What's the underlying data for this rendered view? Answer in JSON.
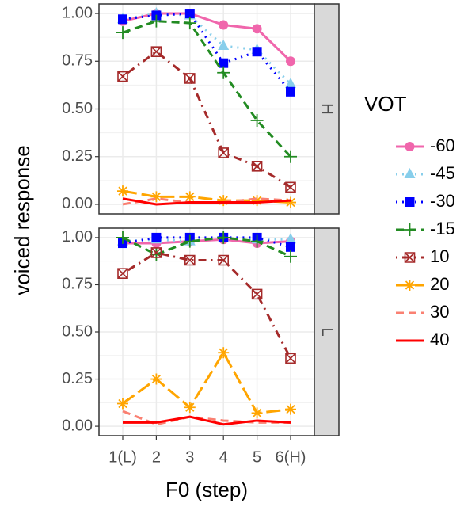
{
  "chart_data": [
    {
      "type": "line",
      "title": "H",
      "y_label": "voiced response",
      "legend_title": "VOT",
      "ylim": [
        -0.05,
        1.05
      ],
      "yticks": [
        {
          "value": 0,
          "label": "0.00"
        },
        {
          "value": 0.25,
          "label": "0.25"
        },
        {
          "value": 0.5,
          "label": "0.50"
        },
        {
          "value": 0.75,
          "label": "0.75"
        },
        {
          "value": 1,
          "label": "1.00"
        }
      ],
      "grid": true,
      "series": [
        {
          "name": "-60",
          "color": "#f066ac",
          "marker": "circle",
          "dash": "solid",
          "values": [
            0.96,
            1.0,
            1.0,
            0.94,
            0.92,
            0.75
          ]
        },
        {
          "name": "-45",
          "color": "#87ceeb",
          "marker": "triangle",
          "dash": "dotted",
          "values": [
            0.97,
            1.0,
            0.99,
            0.83,
            0.81,
            0.63
          ]
        },
        {
          "name": "-30",
          "color": "#0000ff",
          "marker": "square",
          "dash": "dotted",
          "values": [
            0.97,
            0.99,
            1.0,
            0.74,
            0.8,
            0.59
          ]
        },
        {
          "name": "-15",
          "color": "#228b22",
          "marker": "plus",
          "dash": "dashed",
          "values": [
            0.9,
            0.96,
            0.95,
            0.69,
            0.44,
            0.25
          ]
        },
        {
          "name": "10",
          "color": "#a52a2a",
          "marker": "boxx",
          "dash": "dotdash",
          "values": [
            0.67,
            0.8,
            0.66,
            0.27,
            0.2,
            0.09
          ]
        },
        {
          "name": "20",
          "color": "#ffa500",
          "marker": "asterisk",
          "dash": "longdash",
          "values": [
            0.07,
            0.04,
            0.04,
            0.02,
            0.02,
            0.01
          ]
        },
        {
          "name": "30",
          "color": "#fa8072",
          "marker": "none",
          "dash": "dashed",
          "values": [
            0.0,
            0.03,
            0.01,
            0.01,
            0.03,
            0.02
          ]
        },
        {
          "name": "40",
          "color": "#ff0000",
          "marker": "none",
          "dash": "solid",
          "values": [
            0.03,
            0.0,
            0.01,
            0.01,
            0.01,
            0.02
          ]
        }
      ]
    },
    {
      "type": "line",
      "title": "L",
      "x_label": "F0 (step)",
      "categories": [
        "1(L)",
        "2",
        "3",
        "4",
        "5",
        "6(H)"
      ],
      "ylim": [
        -0.05,
        1.05
      ],
      "yticks": [
        {
          "value": 0,
          "label": "0.00"
        },
        {
          "value": 0.25,
          "label": "0.25"
        },
        {
          "value": 0.5,
          "label": "0.50"
        },
        {
          "value": 0.75,
          "label": "0.75"
        },
        {
          "value": 1,
          "label": "1.00"
        }
      ],
      "grid": true,
      "series": [
        {
          "color": "#f066ac",
          "marker": "circle",
          "dash": "solid",
          "values": [
            0.97,
            0.97,
            0.98,
            0.99,
            0.97,
            0.98
          ]
        },
        {
          "color": "#87ceeb",
          "marker": "triangle",
          "dash": "dotted",
          "values": [
            0.98,
            0.99,
            0.98,
            1.0,
            0.99,
            0.99
          ]
        },
        {
          "color": "#0000ff",
          "marker": "square",
          "dash": "dotted",
          "values": [
            0.97,
            1.0,
            1.0,
            1.0,
            1.0,
            0.95
          ]
        },
        {
          "color": "#228b22",
          "marker": "plus",
          "dash": "dashed",
          "values": [
            1.0,
            0.91,
            0.98,
            1.0,
            0.98,
            0.9
          ]
        },
        {
          "color": "#a52a2a",
          "marker": "boxx",
          "dash": "dotdash",
          "values": [
            0.81,
            0.92,
            0.88,
            0.88,
            0.7,
            0.36
          ]
        },
        {
          "color": "#ffa500",
          "marker": "asterisk",
          "dash": "longdash",
          "values": [
            0.12,
            0.25,
            0.1,
            0.39,
            0.07,
            0.09
          ]
        },
        {
          "color": "#fa8072",
          "marker": "none",
          "dash": "dashed",
          "values": [
            0.08,
            0.01,
            0.05,
            0.03,
            0.02,
            0.02
          ]
        },
        {
          "color": "#ff0000",
          "marker": "none",
          "dash": "solid",
          "values": [
            0.02,
            0.02,
            0.05,
            0.01,
            0.03,
            0.02
          ]
        }
      ]
    }
  ]
}
